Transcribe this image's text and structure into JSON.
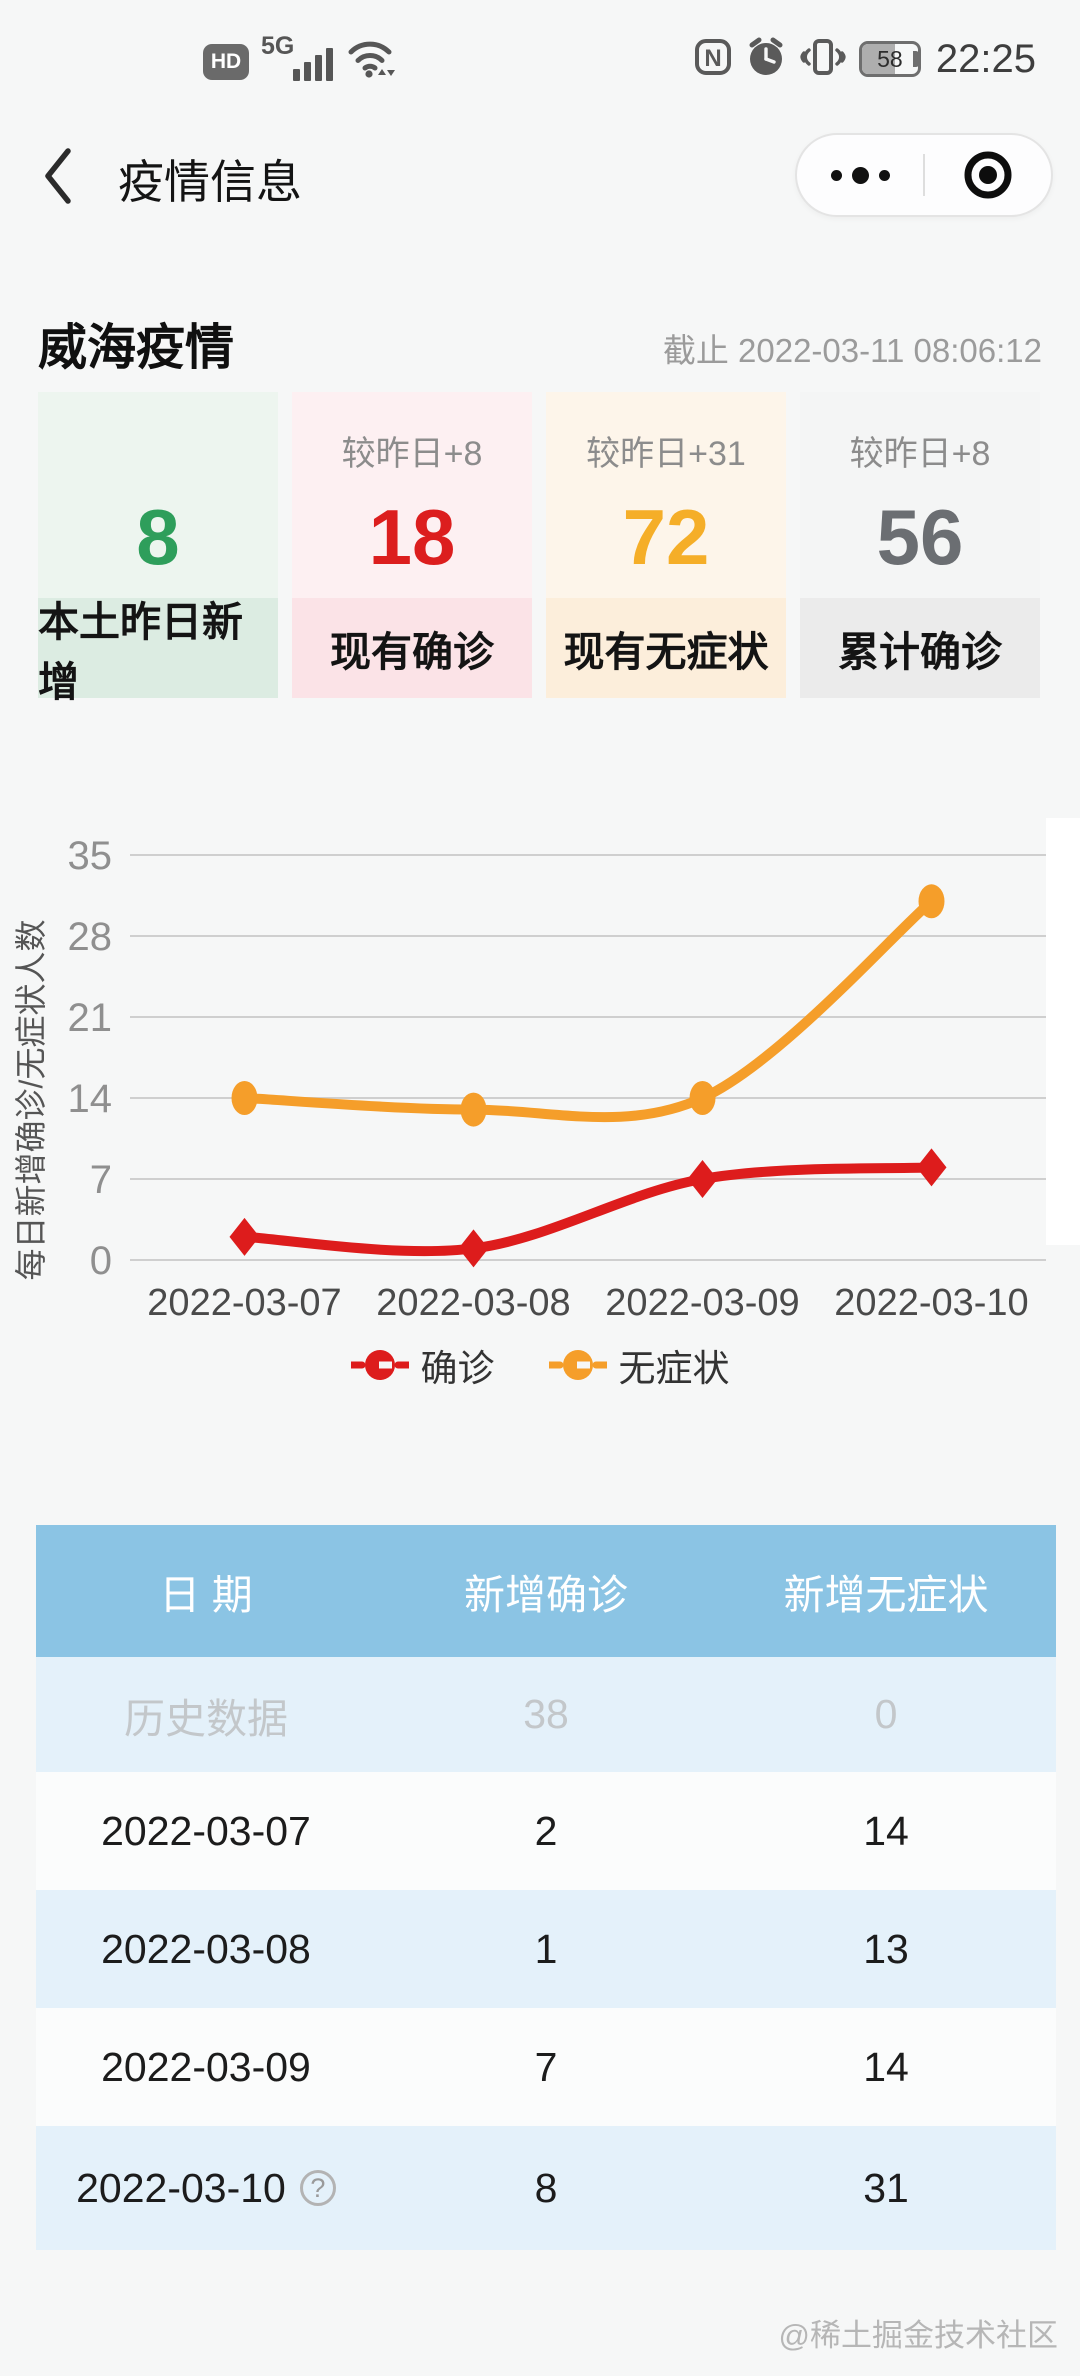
{
  "status_bar": {
    "hd": "HD",
    "network": "5G",
    "battery": "58",
    "time": "22:25"
  },
  "nav": {
    "title": "疫情信息"
  },
  "page": {
    "title": "威海疫情",
    "updated": "截止 2022-03-11 08:06:12"
  },
  "stats": [
    {
      "delta": "",
      "value": "8",
      "label": "本土昨日新增",
      "value_color": "#2e9e5b",
      "bg_top": "#edf5ef",
      "bg_bottom": "#dcece2"
    },
    {
      "delta": "较昨日+8",
      "value": "18",
      "label": "现有确诊",
      "value_color": "#dc1e1e",
      "bg_top": "#fdf0f2",
      "bg_bottom": "#fbe3e7"
    },
    {
      "delta": "较昨日+31",
      "value": "72",
      "label": "现有无症状",
      "value_color": "#f5ae28",
      "bg_top": "#fdf5ea",
      "bg_bottom": "#fceedb"
    },
    {
      "delta": "较昨日+8",
      "value": "56",
      "label": "累计确诊",
      "value_color": "#6b6e72",
      "bg_top": "#f4f5f5",
      "bg_bottom": "#ebebeb"
    }
  ],
  "chart_data": {
    "type": "line",
    "categories": [
      "2022-03-07",
      "2022-03-08",
      "2022-03-09",
      "2022-03-10"
    ],
    "series": [
      {
        "name": "确诊",
        "color": "#dd1c1c",
        "symbol": "diamond",
        "values": [
          2,
          1,
          7,
          8
        ]
      },
      {
        "name": "无症状",
        "color": "#f59e2a",
        "symbol": "circle",
        "values": [
          14,
          13,
          14,
          31
        ]
      }
    ],
    "title": "",
    "xlabel": "",
    "ylabel": "每日新增确诊/无症状人数",
    "ylim": [
      0,
      35
    ],
    "yticks": [
      0,
      7,
      14,
      21,
      28,
      35
    ],
    "grid": true,
    "smooth": true,
    "legend_position": "bottom"
  },
  "table": {
    "headers": [
      "日 期",
      "新增确诊",
      "新增无症状"
    ],
    "rows": [
      {
        "date": "历史数据",
        "confirmed": "38",
        "asymptomatic": "0"
      },
      {
        "date": "2022-03-07",
        "confirmed": "2",
        "asymptomatic": "14"
      },
      {
        "date": "2022-03-08",
        "confirmed": "1",
        "asymptomatic": "13"
      },
      {
        "date": "2022-03-09",
        "confirmed": "7",
        "asymptomatic": "14"
      },
      {
        "date": "2022-03-10",
        "confirmed": "8",
        "asymptomatic": "31"
      }
    ]
  },
  "icons": {
    "question": "?"
  },
  "footer": {
    "watermark": "@稀土掘金技术社区"
  }
}
